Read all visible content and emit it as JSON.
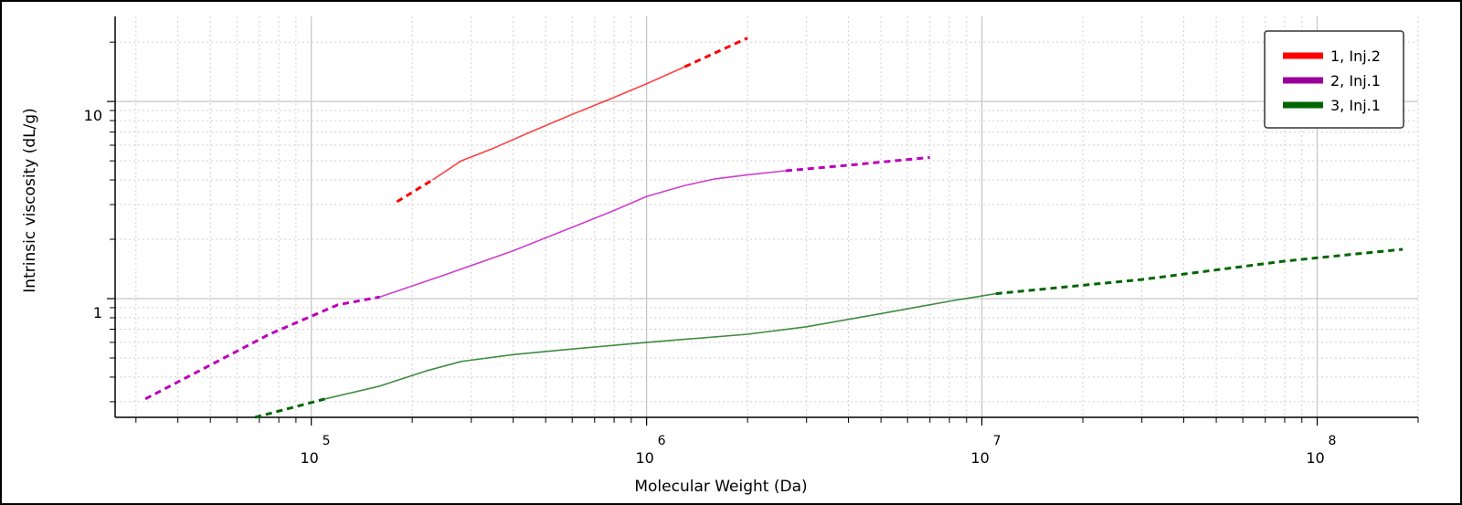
{
  "chart_data": {
    "type": "line",
    "title": "",
    "xlabel": "Molecular Weight (Da)",
    "ylabel": "Intrinsic viscosity (dL/g)",
    "x_scale": "log",
    "y_scale": "log",
    "xlim": [
      26000,
      200000000
    ],
    "ylim": [
      0.25,
      27
    ],
    "x_tick_labels": [
      {
        "value": 100000,
        "base": "10",
        "exp": "5"
      },
      {
        "value": 1000000,
        "base": "10",
        "exp": "6"
      },
      {
        "value": 10000000,
        "base": "10",
        "exp": "7"
      },
      {
        "value": 100000000,
        "base": "10",
        "exp": "8"
      }
    ],
    "y_tick_labels": [
      {
        "value": 1,
        "text": "1"
      },
      {
        "value": 10,
        "text": "10"
      }
    ],
    "grid": true,
    "legend_position": "top-right",
    "series": [
      {
        "name": "1, Inj.2",
        "color": "#ff0000",
        "legend_color": "#ff0000",
        "dashed_start": [
          [
            180000,
            3.1
          ],
          [
            230000,
            4.0
          ]
        ],
        "solid": [
          [
            230000,
            4.0
          ],
          [
            280000,
            5.0
          ],
          [
            350000,
            5.8
          ],
          [
            450000,
            7.0
          ],
          [
            600000,
            8.6
          ],
          [
            800000,
            10.5
          ],
          [
            1000000,
            12.3
          ],
          [
            1300000,
            15.0
          ]
        ],
        "dashed_end": [
          [
            1300000,
            15.0
          ],
          [
            2000000,
            21.0
          ]
        ]
      },
      {
        "name": "2, Inj.1",
        "color": "#bb00bb",
        "legend_color": "#990099",
        "dashed_start": [
          [
            32000,
            0.31
          ],
          [
            50000,
            0.46
          ],
          [
            75000,
            0.66
          ],
          [
            120000,
            0.93
          ],
          [
            160000,
            1.02
          ]
        ],
        "solid": [
          [
            160000,
            1.02
          ],
          [
            250000,
            1.32
          ],
          [
            400000,
            1.75
          ],
          [
            600000,
            2.3
          ],
          [
            800000,
            2.8
          ],
          [
            1000000,
            3.3
          ],
          [
            1300000,
            3.75
          ],
          [
            1600000,
            4.05
          ],
          [
            2000000,
            4.25
          ],
          [
            2600000,
            4.45
          ]
        ],
        "dashed_end": [
          [
            2600000,
            4.45
          ],
          [
            4000000,
            4.75
          ],
          [
            7000000,
            5.2
          ]
        ]
      },
      {
        "name": "3, Inj.1",
        "color": "#006600",
        "legend_color": "#006600",
        "dashed_start": [
          [
            68000,
            0.25
          ],
          [
            110000,
            0.31
          ]
        ],
        "solid": [
          [
            110000,
            0.31
          ],
          [
            160000,
            0.36
          ],
          [
            220000,
            0.43
          ],
          [
            280000,
            0.48
          ],
          [
            400000,
            0.52
          ],
          [
            600000,
            0.555
          ],
          [
            1000000,
            0.6
          ],
          [
            2000000,
            0.66
          ],
          [
            3000000,
            0.72
          ],
          [
            5000000,
            0.84
          ],
          [
            8000000,
            0.97
          ],
          [
            11000000,
            1.06
          ]
        ],
        "dashed_end": [
          [
            11000000,
            1.06
          ],
          [
            30000000,
            1.25
          ],
          [
            80000000,
            1.55
          ],
          [
            180000000,
            1.78
          ]
        ]
      }
    ]
  }
}
